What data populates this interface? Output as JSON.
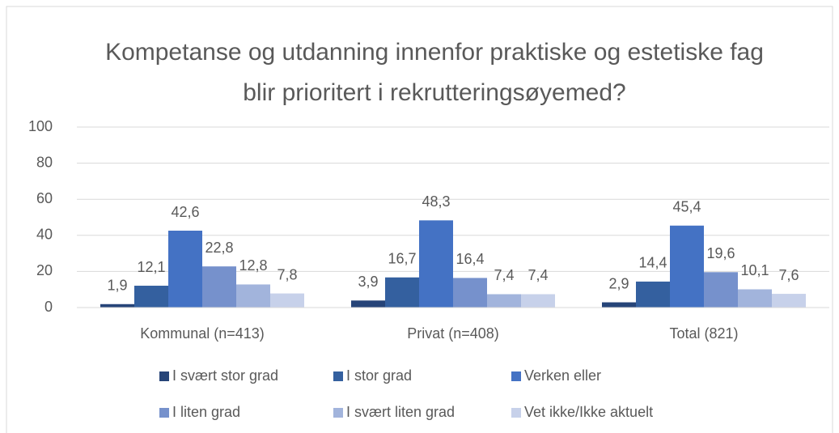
{
  "chart_data": {
    "type": "bar",
    "title": "Kompetanse og utdanning innenfor praktiske og estetiske fag blir prioritert i rekrutteringsøyemed?",
    "categories": [
      "Kommunal (n=413)",
      "Privat (n=408)",
      "Total (821)"
    ],
    "series": [
      {
        "name": "I svært stor grad",
        "color": "#264478",
        "values": [
          1.9,
          3.9,
          2.9
        ],
        "value_labels": [
          "1,9",
          "3,9",
          "2,9"
        ]
      },
      {
        "name": "I stor grad",
        "color": "#34609f",
        "values": [
          12.1,
          16.7,
          14.4
        ],
        "value_labels": [
          "12,1",
          "16,7",
          "14,4"
        ]
      },
      {
        "name": "Verken eller",
        "color": "#4472c4",
        "values": [
          42.6,
          48.3,
          45.4
        ],
        "value_labels": [
          "42,6",
          "48,3",
          "45,4"
        ]
      },
      {
        "name": "I liten grad",
        "color": "#7691cc",
        "values": [
          22.8,
          16.4,
          19.6
        ],
        "value_labels": [
          "22,8",
          "16,4",
          "19,6"
        ]
      },
      {
        "name": "I svært liten grad",
        "color": "#a2b4dc",
        "values": [
          12.8,
          7.4,
          10.1
        ],
        "value_labels": [
          "12,8",
          "7,4",
          "10,1"
        ]
      },
      {
        "name": "Vet ikke/Ikke aktuelt",
        "color": "#c7d1ea",
        "values": [
          7.8,
          7.4,
          7.6
        ],
        "value_labels": [
          "7,8",
          "7,4",
          "7,6"
        ]
      }
    ],
    "ylim": [
      0,
      100
    ],
    "yticks": [
      0,
      20,
      40,
      60,
      80,
      100
    ],
    "grid": true,
    "legend": "bottom"
  }
}
